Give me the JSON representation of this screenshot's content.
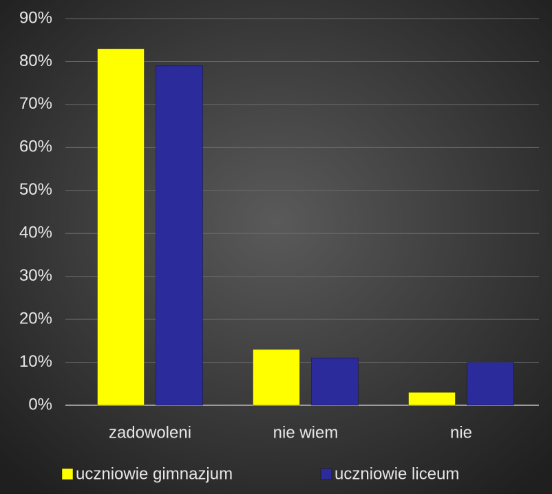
{
  "chart_data": {
    "type": "bar",
    "categories": [
      "zadowoleni",
      "nie wiem",
      "nie"
    ],
    "series": [
      {
        "name": "uczniowie gimnazjum",
        "color": "#ffff00",
        "values": [
          83,
          13,
          3
        ]
      },
      {
        "name": "uczniowie liceum",
        "color": "#2b2b9c",
        "values": [
          79,
          11,
          10
        ]
      }
    ],
    "ylim": [
      0,
      90
    ],
    "yticks": [
      {
        "value": 0,
        "label": "0%"
      },
      {
        "value": 10,
        "label": "10%"
      },
      {
        "value": 20,
        "label": "20%"
      },
      {
        "value": 30,
        "label": "30%"
      },
      {
        "value": 40,
        "label": "40%"
      },
      {
        "value": 50,
        "label": "50%"
      },
      {
        "value": 60,
        "label": "60%"
      },
      {
        "value": 70,
        "label": "70%"
      },
      {
        "value": 80,
        "label": "80%"
      },
      {
        "value": 90,
        "label": "90%"
      }
    ],
    "grid": true,
    "legend": "bottom"
  }
}
